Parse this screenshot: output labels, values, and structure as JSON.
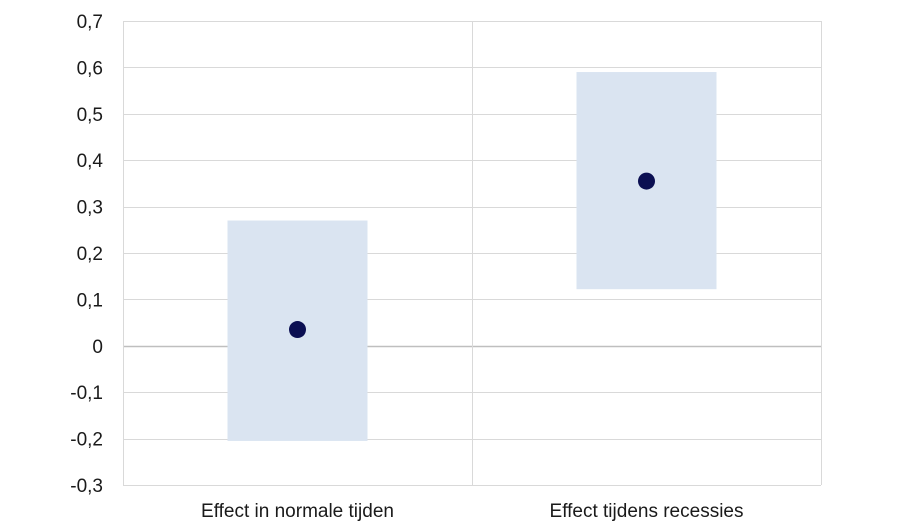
{
  "chart_data": {
    "type": "scatter",
    "title": "",
    "xlabel": "",
    "ylabel": "",
    "categories": [
      "Effect in normale tijden",
      "Effect tijdens recessies"
    ],
    "points": [
      {
        "category": "Effect in normale tijden",
        "value": 0.035,
        "low": -0.205,
        "high": 0.27
      },
      {
        "category": "Effect tijdens recessies",
        "value": 0.355,
        "low": 0.122,
        "high": 0.59
      }
    ],
    "ylim": [
      -0.3,
      0.7
    ],
    "yticks": [
      "0,7",
      "0,6",
      "0,5",
      "0,4",
      "0,3",
      "0,2",
      "0,1",
      "0",
      "-0,1",
      "-0,2",
      "-0,3"
    ],
    "ytick_values": [
      0.7,
      0.6,
      0.5,
      0.4,
      0.3,
      0.2,
      0.1,
      0,
      -0.1,
      -0.2,
      -0.3
    ],
    "grid": true,
    "legend": "none"
  },
  "colors": {
    "point": "#0b0f52",
    "band": "#dae4f1",
    "grid": "#d9d9d9",
    "zero_line": "#bfbfbf"
  }
}
